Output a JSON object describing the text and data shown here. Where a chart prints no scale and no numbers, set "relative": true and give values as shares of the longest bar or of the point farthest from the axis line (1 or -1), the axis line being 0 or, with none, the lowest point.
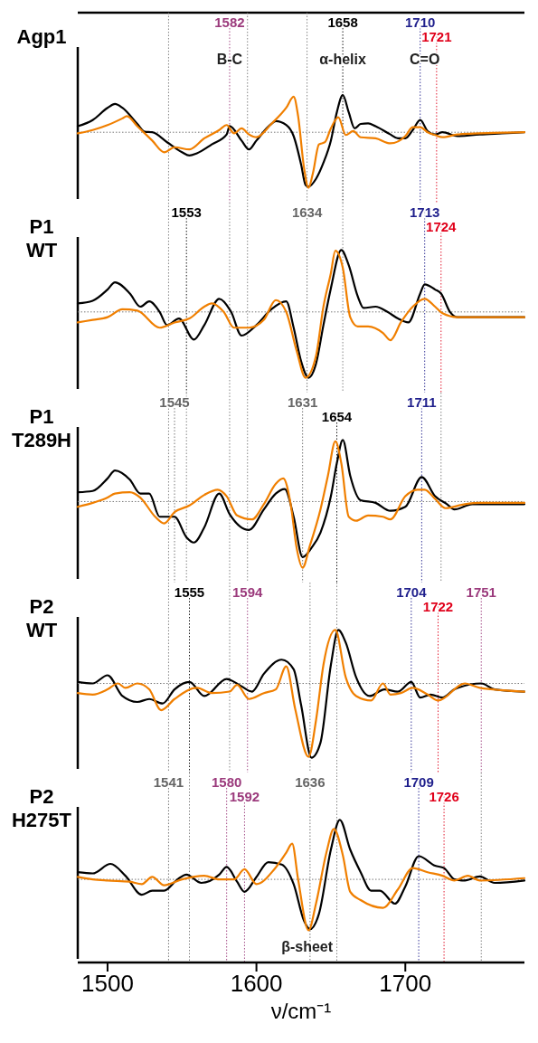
{
  "chart_data": [
    {
      "type": "line",
      "title": "Agp1",
      "relative": true,
      "xlim": [
        1480,
        1780
      ],
      "tick_labels": false,
      "line_style": "solid",
      "series": [
        {
          "color": "#000000",
          "x": [
            1480,
            1490,
            1500,
            1505,
            1510,
            1520,
            1525,
            1530,
            1540,
            1550,
            1555,
            1560,
            1570,
            1580,
            1582,
            1590,
            1595,
            1600,
            1610,
            1613,
            1620,
            1625,
            1630,
            1633,
            1635,
            1640,
            1645,
            1650,
            1654,
            1658,
            1662,
            1666,
            1670,
            1675,
            1680,
            1690,
            1695,
            1700,
            1705,
            1710,
            1715,
            1720,
            1725,
            1735,
            1750,
            1765,
            1780
          ],
          "values": [
            0.11,
            0.22,
            0.44,
            0.51,
            0.44,
            0.15,
            0.01,
            0,
            -0.18,
            -0.36,
            -0.42,
            -0.38,
            -0.22,
            -0.04,
            0.11,
            -0.15,
            -0.31,
            -0.15,
            0.15,
            0.2,
            0.13,
            -0.07,
            -0.58,
            -0.95,
            -0.98,
            -0.84,
            -0.55,
            -0.15,
            0.36,
            0.67,
            0.36,
            0.07,
            0.15,
            0.16,
            0.11,
            -0.04,
            -0.11,
            -0.11,
            0.04,
            0.22,
            0.02,
            -0.04,
            0,
            -0.07,
            -0.04,
            -0.02,
            0
          ]
        },
        {
          "color": "#f07f00",
          "x": [
            1480,
            1490,
            1500,
            1510,
            1513,
            1520,
            1530,
            1538,
            1545,
            1555,
            1565,
            1575,
            1580,
            1585,
            1590,
            1595,
            1600,
            1610,
            1620,
            1625,
            1628,
            1632,
            1635,
            1638,
            1642,
            1646,
            1650,
            1655,
            1660,
            1665,
            1670,
            1680,
            1690,
            1700,
            1705,
            1710,
            1715,
            1720,
            1725,
            1735,
            1750,
            1780
          ],
          "values": [
            -0.02,
            0.04,
            0.13,
            0.25,
            0.29,
            0.11,
            -0.15,
            -0.36,
            -0.27,
            -0.31,
            -0.11,
            0.04,
            0.13,
            -0.02,
            0.07,
            -0.04,
            -0.09,
            0.15,
            0.44,
            0.64,
            0.29,
            -0.65,
            -1,
            -0.73,
            -0.22,
            -0.18,
            0.07,
            0.27,
            -0.05,
            0.02,
            -0.09,
            -0.11,
            -0.2,
            -0.07,
            0.09,
            0.09,
            0,
            -0.05,
            -0.09,
            -0.04,
            -0.02,
            0
          ]
        }
      ],
      "ref_lines": [
        {
          "axis": "y",
          "value": 0,
          "color": "#777777"
        },
        {
          "axis": "x",
          "value": 1541
        },
        {
          "axis": "x",
          "value": 1582,
          "label": "1582",
          "color": "#9b3a7c"
        },
        {
          "axis": "x",
          "value": 1594
        },
        {
          "axis": "x",
          "value": 1634
        },
        {
          "axis": "x",
          "value": 1658,
          "label": "1658",
          "color": "#000000"
        },
        {
          "axis": "x",
          "value": 1710,
          "label": "1710",
          "color": "#1f1f8c"
        },
        {
          "axis": "x",
          "value": 1721,
          "label": "1721",
          "color": "#e0001a"
        }
      ],
      "annotations": [
        {
          "text": "B-C",
          "x": 1582,
          "y": 1.3
        },
        {
          "text": "α-helix",
          "x": 1658,
          "y": 1.3
        },
        {
          "text": "C=O",
          "x": 1713,
          "y": 1.3
        }
      ]
    },
    {
      "type": "line",
      "title": "P1 WT",
      "relative": true,
      "xlim": [
        1480,
        1780
      ],
      "tick_labels": false,
      "line_style": "solid",
      "series": [
        {
          "color": "#000000",
          "x": [
            1480,
            1490,
            1500,
            1505,
            1515,
            1522,
            1528,
            1535,
            1540,
            1548,
            1558,
            1565,
            1575,
            1583,
            1590,
            1600,
            1610,
            1620,
            1625,
            1630,
            1635,
            1640,
            1645,
            1650,
            1657,
            1662,
            1668,
            1672,
            1680,
            1688,
            1695,
            1702,
            1710,
            1713,
            1720,
            1724,
            1730,
            1735,
            1750,
            1780
          ],
          "values": [
            0.13,
            0.17,
            0.34,
            0.45,
            0.28,
            0.08,
            0.16,
            0,
            -0.2,
            -0.1,
            -0.42,
            -0.2,
            0.2,
            0,
            -0.36,
            -0.2,
            0.04,
            0.16,
            -0.24,
            -0.75,
            -1,
            -0.79,
            -0.2,
            0.36,
            0.94,
            0.71,
            0.24,
            0.06,
            0.08,
            0,
            -0.1,
            -0.16,
            0.28,
            0.42,
            0.34,
            0.28,
            0,
            -0.08,
            -0.08,
            -0.08
          ]
        },
        {
          "color": "#f07f00",
          "x": [
            1480,
            1490,
            1500,
            1510,
            1520,
            1535,
            1545,
            1555,
            1565,
            1570,
            1578,
            1585,
            1595,
            1605,
            1613,
            1620,
            1627,
            1633,
            1640,
            1645,
            1650,
            1653,
            1658,
            1663,
            1668,
            1675,
            1685,
            1690,
            1697,
            1705,
            1713,
            1720,
            1725,
            1735,
            1780
          ],
          "values": [
            -0.16,
            -0.12,
            -0.08,
            0.04,
            0.02,
            -0.24,
            -0.16,
            -0.1,
            0.08,
            0.13,
            0,
            -0.24,
            -0.24,
            -0.12,
            0.18,
            0,
            -0.59,
            -1,
            -0.67,
            0.08,
            0.59,
            0.93,
            0.67,
            -0.08,
            -0.22,
            -0.22,
            -0.32,
            -0.43,
            -0.16,
            0.08,
            0.2,
            0.08,
            -0.02,
            -0.08,
            -0.08
          ]
        }
      ],
      "ref_lines": [
        {
          "axis": "y",
          "value": 0,
          "color": "#777777"
        },
        {
          "axis": "x",
          "value": 1541
        },
        {
          "axis": "x",
          "value": 1553,
          "label": "1553",
          "color": "#000000"
        },
        {
          "axis": "x",
          "value": 1582
        },
        {
          "axis": "x",
          "value": 1594
        },
        {
          "axis": "x",
          "value": 1634,
          "label": "1634",
          "color": "#666666"
        },
        {
          "axis": "x",
          "value": 1658
        },
        {
          "axis": "x",
          "value": 1713,
          "label": "1713",
          "color": "#1f1f8c"
        },
        {
          "axis": "x",
          "value": 1724,
          "label": "1724",
          "color": "#e0001a"
        }
      ]
    },
    {
      "type": "line",
      "title": "P1 T289H",
      "relative": true,
      "xlim": [
        1480,
        1780
      ],
      "tick_labels": false,
      "line_style": "solid",
      "series": [
        {
          "color": "#000000",
          "x": [
            1480,
            1490,
            1500,
            1505,
            1515,
            1522,
            1528,
            1535,
            1545,
            1553,
            1558,
            1565,
            1575,
            1582,
            1595,
            1605,
            1613,
            1619,
            1625,
            1631,
            1637,
            1643,
            1650,
            1654,
            1658,
            1663,
            1670,
            1680,
            1690,
            1700,
            1711,
            1720,
            1728,
            1733,
            1745,
            1780
          ],
          "values": [
            0.14,
            0.16,
            0.35,
            0.47,
            0.33,
            0.12,
            0.12,
            -0.23,
            -0.23,
            -0.54,
            -0.62,
            -0.39,
            0.12,
            -0.19,
            -0.43,
            -0.12,
            0.12,
            0.19,
            -0.23,
            -0.84,
            -0.7,
            -0.47,
            0.08,
            0.58,
            0.93,
            0.39,
            0.02,
            -0.02,
            -0.14,
            -0.08,
            0.37,
            0.08,
            -0.04,
            -0.12,
            -0.04,
            -0.04
          ]
        },
        {
          "color": "#f07f00",
          "x": [
            1480,
            1490,
            1500,
            1505,
            1515,
            1522,
            1532,
            1538,
            1545,
            1555,
            1565,
            1574,
            1580,
            1587,
            1597,
            1605,
            1613,
            1618,
            1623,
            1627,
            1631,
            1636,
            1643,
            1648,
            1653,
            1657,
            1662,
            1667,
            1675,
            1685,
            1690,
            1700,
            1708,
            1713,
            1720,
            1727,
            1740,
            1750,
            1780
          ],
          "values": [
            -0.08,
            -0.02,
            0.06,
            0.12,
            0.14,
            0.06,
            -0.23,
            -0.33,
            -0.16,
            -0.06,
            0.1,
            0.18,
            0.08,
            -0.21,
            -0.27,
            -0.04,
            0.27,
            0.35,
            -0.04,
            -0.7,
            -1,
            -0.66,
            -0.12,
            0.39,
            0.91,
            0.58,
            -0.23,
            -0.29,
            -0.21,
            -0.23,
            -0.27,
            0.08,
            0.18,
            0.18,
            0.04,
            -0.1,
            -0.04,
            -0.02,
            -0.02
          ]
        }
      ],
      "ref_lines": [
        {
          "axis": "y",
          "value": 0,
          "color": "#777777"
        },
        {
          "axis": "x",
          "value": 1541
        },
        {
          "axis": "x",
          "value": 1545,
          "label": "1545",
          "color": "#666666"
        },
        {
          "axis": "x",
          "value": 1553
        },
        {
          "axis": "x",
          "value": 1582
        },
        {
          "axis": "x",
          "value": 1594
        },
        {
          "axis": "x",
          "value": 1631,
          "label": "1631",
          "color": "#666666"
        },
        {
          "axis": "x",
          "value": 1654,
          "label": "1654",
          "color": "#000000"
        },
        {
          "axis": "x",
          "value": 1711,
          "label": "1711",
          "color": "#1f1f8c"
        },
        {
          "axis": "x",
          "value": 1724
        }
      ]
    },
    {
      "type": "line",
      "title": "P2 WT",
      "relative": true,
      "xlim": [
        1480,
        1780
      ],
      "tick_labels": false,
      "line_style": "solid",
      "series": [
        {
          "color": "#000000",
          "x": [
            1480,
            1490,
            1500,
            1510,
            1520,
            1528,
            1537,
            1545,
            1555,
            1565,
            1580,
            1590,
            1597,
            1605,
            1617,
            1625,
            1630,
            1637,
            1643,
            1650,
            1655,
            1660,
            1667,
            1676,
            1686,
            1695,
            1704,
            1710,
            1717,
            1725,
            1733,
            1751,
            1760,
            1780
          ],
          "values": [
            0.02,
            0,
            0.11,
            -0.17,
            -0.25,
            -0.21,
            -0.27,
            -0.08,
            0.02,
            -0.17,
            0.06,
            -0.04,
            -0.11,
            0.13,
            0.32,
            0.19,
            -0.29,
            -1,
            -0.8,
            0.25,
            0.72,
            0.55,
            0.08,
            -0.17,
            -0.08,
            -0.11,
            0.02,
            -0.19,
            -0.15,
            -0.19,
            -0.08,
            0,
            -0.08,
            -0.11
          ]
        },
        {
          "color": "#f07f00",
          "x": [
            1480,
            1490,
            1500,
            1507,
            1512,
            1520,
            1528,
            1536,
            1545,
            1560,
            1570,
            1582,
            1587,
            1595,
            1605,
            1613,
            1620,
            1626,
            1635,
            1640,
            1645,
            1653,
            1660,
            1667,
            1677,
            1685,
            1690,
            1697,
            1705,
            1715,
            1722,
            1740,
            1750,
            1780
          ],
          "values": [
            -0.13,
            -0.15,
            -0.08,
            0,
            -0.06,
            0,
            -0.08,
            -0.36,
            -0.21,
            -0.06,
            -0.13,
            -0.11,
            -0.02,
            -0.21,
            -0.13,
            -0.08,
            0.23,
            -0.34,
            -0.99,
            -0.5,
            0.25,
            0.72,
            0.08,
            -0.17,
            -0.23,
            0,
            -0.15,
            -0.13,
            -0.06,
            -0.15,
            -0.23,
            0,
            -0.06,
            -0.11
          ]
        }
      ],
      "ref_lines": [
        {
          "axis": "y",
          "value": 0,
          "color": "#777777"
        },
        {
          "axis": "x",
          "value": 1541
        },
        {
          "axis": "x",
          "value": 1555,
          "label": "1555",
          "color": "#000000"
        },
        {
          "axis": "x",
          "value": 1582
        },
        {
          "axis": "x",
          "value": 1594,
          "label": "1594",
          "color": "#9b3a7c"
        },
        {
          "axis": "x",
          "value": 1636
        },
        {
          "axis": "x",
          "value": 1654
        },
        {
          "axis": "x",
          "value": 1704,
          "label": "1704",
          "color": "#1f1f8c"
        },
        {
          "axis": "x",
          "value": 1722,
          "label": "1722",
          "color": "#e0001a"
        },
        {
          "axis": "x",
          "value": 1751,
          "label": "1751",
          "color": "#9b3a7c"
        }
      ]
    },
    {
      "type": "line",
      "title": "P2 H275T",
      "relative": true,
      "xlim": [
        1480,
        1780
      ],
      "xticks": [
        1500,
        1600,
        1700
      ],
      "xlabel": "ν/cm⁻¹",
      "tick_labels": "x",
      "line_style": "solid",
      "series": [
        {
          "color": "#000000",
          "x": [
            1480,
            1490,
            1502,
            1512,
            1523,
            1530,
            1538,
            1547,
            1553,
            1563,
            1575,
            1580,
            1587,
            1592,
            1600,
            1608,
            1617,
            1625,
            1632,
            1636,
            1642,
            1650,
            1656,
            1663,
            1670,
            1677,
            1683,
            1693,
            1700,
            1709,
            1720,
            1726,
            1733,
            1740,
            1750,
            1760,
            1780
          ],
          "values": [
            0.12,
            0.1,
            0.26,
            0.06,
            -0.26,
            -0.19,
            -0.19,
            0,
            0.08,
            -0.06,
            0.08,
            0.21,
            -0.04,
            -0.21,
            0.04,
            0.29,
            0.25,
            -0.08,
            -0.7,
            -0.84,
            -0.58,
            0.5,
            1,
            0.5,
            0.12,
            -0.19,
            -0.19,
            -0.41,
            -0.12,
            0.39,
            0.23,
            0.19,
            0,
            -0.02,
            0.05,
            -0.06,
            -0.02
          ]
        },
        {
          "color": "#f07f00",
          "x": [
            1480,
            1490,
            1500,
            1515,
            1523,
            1530,
            1538,
            1550,
            1565,
            1575,
            1585,
            1592,
            1600,
            1612,
            1620,
            1624,
            1628,
            1635,
            1640,
            1647,
            1652,
            1658,
            1663,
            1670,
            1685,
            1695,
            1705,
            1715,
            1725,
            1733,
            1742,
            1750,
            1780
          ],
          "values": [
            0.04,
            0,
            -0.02,
            -0.04,
            -0.08,
            0.04,
            -0.1,
            0,
            0.06,
            0,
            0,
            0.17,
            -0.08,
            0.17,
            0.45,
            0.6,
            0,
            -0.86,
            -0.41,
            0.45,
            0.85,
            0.41,
            -0.21,
            -0.35,
            -0.48,
            -0.17,
            0.19,
            0.12,
            0.06,
            -0.02,
            0.06,
            -0.02,
            0.02
          ]
        }
      ],
      "ref_lines": [
        {
          "axis": "y",
          "value": 0,
          "color": "#777777"
        },
        {
          "axis": "x",
          "value": 1541,
          "label": "1541",
          "color": "#666666"
        },
        {
          "axis": "x",
          "value": 1555
        },
        {
          "axis": "x",
          "value": 1580,
          "label": "1580",
          "color": "#9b3a7c"
        },
        {
          "axis": "x",
          "value": 1592,
          "label": "1592",
          "color": "#9b3a7c"
        },
        {
          "axis": "x",
          "value": 1636,
          "label": "1636",
          "color": "#666666"
        },
        {
          "axis": "x",
          "value": 1654
        },
        {
          "axis": "x",
          "value": 1709,
          "label": "1709",
          "color": "#1f1f8c"
        },
        {
          "axis": "x",
          "value": 1726,
          "label": "1726",
          "color": "#e0001a"
        },
        {
          "axis": "x",
          "value": 1751
        }
      ],
      "annotations": [
        {
          "text": "β-sheet",
          "x": 1634,
          "y": -1.15
        }
      ]
    }
  ]
}
